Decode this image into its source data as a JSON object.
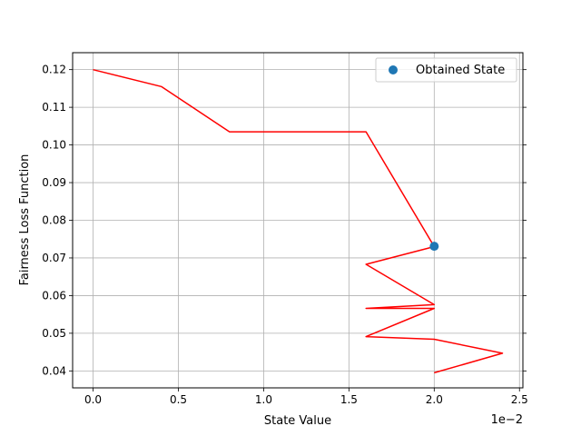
{
  "chart_data": {
    "type": "line",
    "title": "",
    "xlabel": "State Value",
    "ylabel": "Fairness Loss Function",
    "x_offset_text": "1e−2",
    "xlim": [
      -0.12,
      2.52
    ],
    "ylim": [
      0.0355,
      0.1245
    ],
    "x_ticks": [
      0.0,
      0.5,
      1.0,
      1.5,
      2.0,
      2.5
    ],
    "x_tick_labels": [
      "0.0",
      "0.5",
      "1.0",
      "1.5",
      "2.0",
      "2.5"
    ],
    "y_ticks": [
      0.04,
      0.05,
      0.06,
      0.07,
      0.08,
      0.09,
      0.1,
      0.11,
      0.12
    ],
    "y_tick_labels": [
      "0.04",
      "0.05",
      "0.06",
      "0.07",
      "0.08",
      "0.09",
      "0.10",
      "0.11",
      "0.12"
    ],
    "grid": true,
    "legend_position": "upper right",
    "series": [
      {
        "kind": "line",
        "color": "#ff0000",
        "x": [
          0.0,
          0.4,
          0.8,
          1.6,
          2.0,
          1.6,
          2.0,
          1.6,
          2.0,
          1.6,
          2.0,
          2.4,
          2.0
        ],
        "y": [
          0.12,
          0.1155,
          0.1035,
          0.1035,
          0.073,
          0.0683,
          0.0576,
          0.0566,
          0.0566,
          0.0491,
          0.0484,
          0.0447,
          0.0395
        ]
      },
      {
        "kind": "scatter",
        "name": "Obtained State",
        "color": "#1f77b4",
        "x": [
          2.0
        ],
        "y": [
          0.0731
        ]
      }
    ]
  }
}
